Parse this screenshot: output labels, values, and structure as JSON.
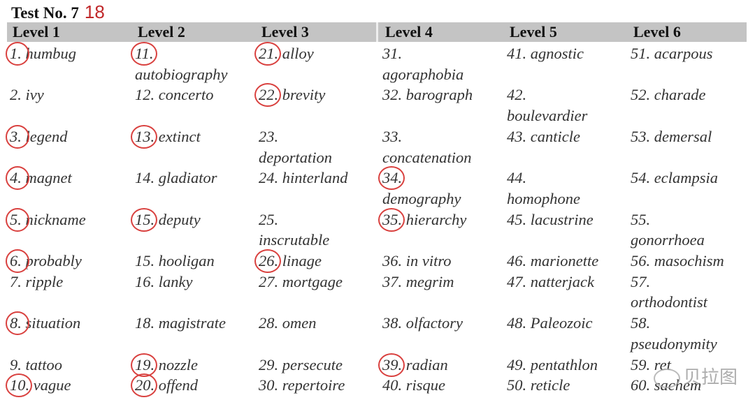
{
  "title": "Test No. 7",
  "score": "18",
  "header_color": "#c4c4c4",
  "circle_color": "#d9413f",
  "levels": [
    "Level 1",
    "Level 2",
    "Level 3",
    "Level 4",
    "Level 5",
    "Level 6"
  ],
  "rows": [
    [
      {
        "n": "1.",
        "w": "humbug",
        "c": true
      },
      {
        "n": "11.",
        "w": "autobiography",
        "c": true
      },
      {
        "n": "21.",
        "w": "alloy",
        "c": true
      },
      {
        "n": "31.",
        "w": "agoraphobia"
      },
      {
        "n": "41.",
        "w": "agnostic"
      },
      {
        "n": "51.",
        "w": "acarpous"
      }
    ],
    [
      {
        "n": "2.",
        "w": "ivy"
      },
      {
        "n": "12.",
        "w": "concerto"
      },
      {
        "n": "22.",
        "w": "brevity",
        "c": true
      },
      {
        "n": "32.",
        "w": "barograph"
      },
      {
        "n": "42.",
        "w": "boulevardier"
      },
      {
        "n": "52.",
        "w": "charade"
      }
    ],
    [
      {
        "n": "3.",
        "w": "legend",
        "c": true
      },
      {
        "n": "13.",
        "w": "extinct",
        "c": true
      },
      {
        "n": "23.",
        "w": "deportation"
      },
      {
        "n": "33.",
        "w": "concatenation"
      },
      {
        "n": "43.",
        "w": "canticle"
      },
      {
        "n": "53.",
        "w": "demersal"
      }
    ],
    [
      {
        "n": "4.",
        "w": "magnet",
        "c": true
      },
      {
        "n": "14.",
        "w": "gladiator"
      },
      {
        "n": "24.",
        "w": "hinterland"
      },
      {
        "n": "34.",
        "w": "demography",
        "c": true
      },
      {
        "n": "44.",
        "w": "homophone"
      },
      {
        "n": "54.",
        "w": "eclampsia"
      }
    ],
    [
      {
        "n": "5.",
        "w": "nickname",
        "c": true
      },
      {
        "n": "15.",
        "w": "deputy",
        "c": true
      },
      {
        "n": "25.",
        "w": "inscrutable"
      },
      {
        "n": "35.",
        "w": "hierarchy",
        "c": true
      },
      {
        "n": "45.",
        "w": "lacustrine"
      },
      {
        "n": "55.",
        "w": "gonorrhoea"
      }
    ],
    [
      {
        "n": "6.",
        "w": "probably",
        "c": true
      },
      {
        "n": "15.",
        "w": "hooligan"
      },
      {
        "n": "26.",
        "w": "linage",
        "c": true
      },
      {
        "n": "36.",
        "w": "in vitro"
      },
      {
        "n": "46.",
        "w": "marionette"
      },
      {
        "n": "56.",
        "w": "masochism"
      }
    ],
    [
      {
        "n": "7.",
        "w": "ripple"
      },
      {
        "n": "16.",
        "w": "lanky"
      },
      {
        "n": "27.",
        "w": "mortgage"
      },
      {
        "n": "37.",
        "w": "megrim"
      },
      {
        "n": "47.",
        "w": "natterjack"
      },
      {
        "n": "57.",
        "w": "orthodontist"
      }
    ],
    [
      {
        "n": "8.",
        "w": "situation",
        "c": true
      },
      {
        "n": "18.",
        "w": "magistrate"
      },
      {
        "n": "28.",
        "w": "omen"
      },
      {
        "n": "38.",
        "w": "olfactory"
      },
      {
        "n": "48.",
        "w": "Paleozoic"
      },
      {
        "n": "58.",
        "w": "pseudonymity"
      }
    ],
    [
      {
        "n": "9.",
        "w": "tattoo"
      },
      {
        "n": "19.",
        "w": "nozzle",
        "c": true
      },
      {
        "n": "29.",
        "w": "persecute"
      },
      {
        "n": "39.",
        "w": "radian",
        "c": true
      },
      {
        "n": "49.",
        "w": "pentathlon"
      },
      {
        "n": "59.",
        "w": "ret"
      }
    ],
    [
      {
        "n": "10.",
        "w": "vague",
        "c": true
      },
      {
        "n": "20.",
        "w": "offend",
        "c": true
      },
      {
        "n": "30.",
        "w": "repertoire"
      },
      {
        "n": "40.",
        "w": "risque"
      },
      {
        "n": "50.",
        "w": "reticle"
      },
      {
        "n": "60.",
        "w": "sachem"
      }
    ]
  ],
  "watermark": "贝拉图"
}
